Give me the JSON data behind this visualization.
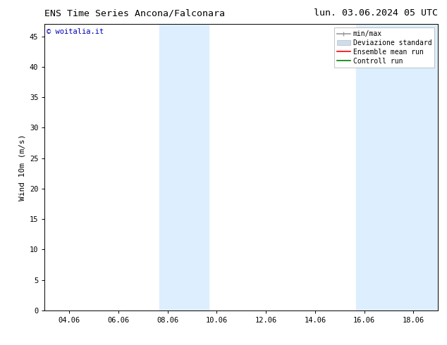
{
  "title_left": "ENS Time Series Ancona/Falconara",
  "title_right": "lun. 03.06.2024 05 UTC",
  "ylabel": "Wind 10m (m/s)",
  "watermark": "© woitalia.it",
  "watermark_color": "#0000bb",
  "ylim": [
    0,
    47
  ],
  "yticks": [
    0,
    5,
    10,
    15,
    20,
    25,
    30,
    35,
    40,
    45
  ],
  "xtick_labels": [
    "04.06",
    "06.06",
    "08.06",
    "10.06",
    "12.06",
    "14.06",
    "16.06",
    "18.06"
  ],
  "xtick_positions": [
    1,
    3,
    5,
    7,
    9,
    11,
    13,
    15
  ],
  "xlim": [
    0,
    16
  ],
  "shaded_bands": [
    {
      "xmin": 4.67,
      "xmax": 6.67,
      "color": "#ddeeff",
      "alpha": 1.0
    },
    {
      "xmin": 12.67,
      "xmax": 16.0,
      "color": "#ddeeff",
      "alpha": 1.0
    }
  ],
  "legend_items": [
    {
      "label": "min/max",
      "color": "#999999",
      "lw": 1.2,
      "style": "minmax"
    },
    {
      "label": "Deviazione standard",
      "color": "#ccddf0",
      "lw": 8,
      "style": "band"
    },
    {
      "label": "Ensemble mean run",
      "color": "#ff0000",
      "lw": 1.2,
      "style": "line"
    },
    {
      "label": "Controll run",
      "color": "#008000",
      "lw": 1.2,
      "style": "line"
    }
  ],
  "bg_color": "#ffffff",
  "plot_bg_color": "#ffffff",
  "spine_color": "#000000",
  "tick_color": "#000000",
  "title_fontsize": 9.5,
  "label_fontsize": 8,
  "tick_fontsize": 7.5,
  "legend_fontsize": 7,
  "watermark_fontsize": 7.5
}
